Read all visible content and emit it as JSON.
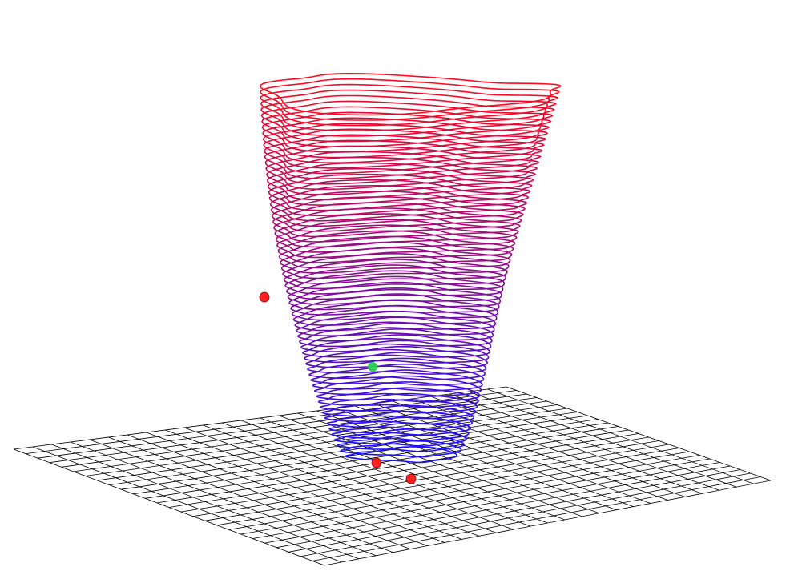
{
  "chart_data": {
    "type": "3d-contour-stack",
    "title": "",
    "xlabel": "",
    "ylabel": "",
    "zlabel": "",
    "grid_floor": true,
    "floor_grid_divisions": 26,
    "contour_levels": 66,
    "color_low": "#1a10ff",
    "color_high": "#ff0a1e",
    "floor_line_color": "#000000",
    "marker_colors": {
      "red": "#ff2020",
      "green": "#2ecc55"
    },
    "markers": [
      {
        "name": "red-point-1",
        "color": "red"
      },
      {
        "name": "red-point-2",
        "color": "red"
      },
      {
        "name": "red-point-3",
        "color": "red"
      },
      {
        "name": "green-point",
        "color": "green"
      }
    ]
  }
}
